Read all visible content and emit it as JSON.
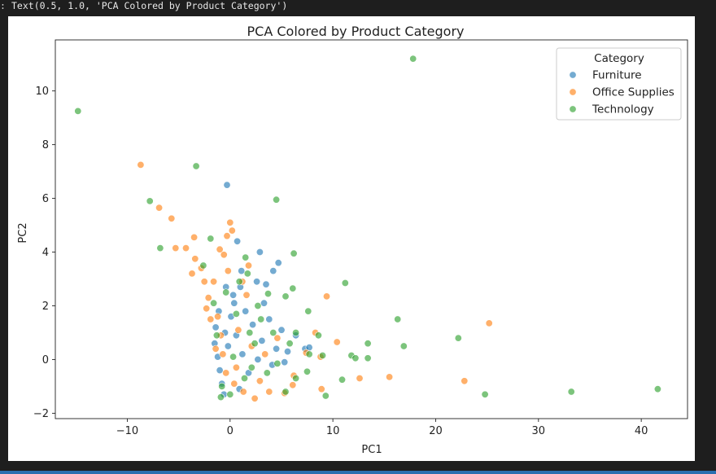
{
  "output": {
    "gutter": ":",
    "text": "Text(0.5, 1.0, 'PCA Colored by Product Category')"
  },
  "chart_data": {
    "type": "scatter",
    "title": "PCA Colored by Product Category",
    "xlabel": "PC1",
    "ylabel": "PC2",
    "xlim": [
      -17,
      44.5
    ],
    "ylim": [
      -2.2,
      11.9
    ],
    "xticks": [
      -10,
      0,
      10,
      20,
      30,
      40
    ],
    "yticks": [
      -2,
      0,
      2,
      4,
      6,
      8,
      10
    ],
    "grid": false,
    "legend": {
      "title": "Category",
      "placement": "top-right"
    },
    "series": [
      {
        "name": "Furniture",
        "color": "#1f77b4",
        "points": [
          [
            -0.3,
            6.5
          ],
          [
            0.7,
            4.4
          ],
          [
            2.9,
            4.0
          ],
          [
            4.7,
            3.6
          ],
          [
            4.2,
            3.3
          ],
          [
            3.5,
            2.8
          ],
          [
            2.6,
            2.9
          ],
          [
            1.1,
            3.3
          ],
          [
            -0.4,
            2.7
          ],
          [
            0.3,
            2.4
          ],
          [
            -1.1,
            1.8
          ],
          [
            -1.4,
            1.2
          ],
          [
            -1.5,
            0.6
          ],
          [
            -1.2,
            0.1
          ],
          [
            -1.0,
            -0.4
          ],
          [
            -0.8,
            -0.9
          ],
          [
            -0.6,
            -1.3
          ],
          [
            0.1,
            1.6
          ],
          [
            0.6,
            0.9
          ],
          [
            1.2,
            0.2
          ],
          [
            1.8,
            -0.5
          ],
          [
            2.2,
            1.3
          ],
          [
            3.1,
            0.7
          ],
          [
            3.8,
            1.5
          ],
          [
            4.5,
            0.4
          ],
          [
            5.0,
            1.1
          ],
          [
            5.6,
            0.3
          ],
          [
            6.4,
            0.9
          ],
          [
            7.3,
            0.4
          ],
          [
            7.7,
            0.45
          ],
          [
            0.4,
            2.1
          ],
          [
            -0.2,
            0.5
          ],
          [
            1.5,
            1.8
          ],
          [
            2.7,
            0.0
          ],
          [
            0.9,
            -1.1
          ],
          [
            -0.5,
            1.0
          ],
          [
            3.3,
            2.1
          ],
          [
            4.1,
            -0.2
          ],
          [
            1.0,
            2.7
          ],
          [
            5.3,
            -0.1
          ]
        ]
      },
      {
        "name": "Office Supplies",
        "color": "#ff7f0e",
        "points": [
          [
            -8.7,
            7.25
          ],
          [
            -6.9,
            5.65
          ],
          [
            -5.7,
            5.25
          ],
          [
            -5.3,
            4.15
          ],
          [
            -3.5,
            4.55
          ],
          [
            -4.3,
            4.15
          ],
          [
            -3.4,
            3.75
          ],
          [
            -3.7,
            3.2
          ],
          [
            -2.8,
            3.4
          ],
          [
            -2.5,
            2.9
          ],
          [
            -2.1,
            2.3
          ],
          [
            -2.3,
            1.9
          ],
          [
            -1.9,
            1.5
          ],
          [
            0.0,
            5.1
          ],
          [
            0.2,
            4.8
          ],
          [
            -0.3,
            4.6
          ],
          [
            -1.0,
            4.1
          ],
          [
            -0.6,
            3.9
          ],
          [
            1.8,
            3.5
          ],
          [
            -1.6,
            2.9
          ],
          [
            -1.2,
            1.6
          ],
          [
            -0.9,
            0.9
          ],
          [
            -0.7,
            0.2
          ],
          [
            -0.4,
            -0.5
          ],
          [
            0.4,
            -0.9
          ],
          [
            1.3,
            -1.2
          ],
          [
            2.4,
            -1.45
          ],
          [
            3.8,
            -1.2
          ],
          [
            5.3,
            -1.25
          ],
          [
            6.2,
            -0.6
          ],
          [
            6.1,
            -0.95
          ],
          [
            7.4,
            0.25
          ],
          [
            8.8,
            0.1
          ],
          [
            8.3,
            1.0
          ],
          [
            9.4,
            2.35
          ],
          [
            10.4,
            0.65
          ],
          [
            12.6,
            -0.7
          ],
          [
            8.9,
            -1.1
          ],
          [
            15.5,
            -0.65
          ],
          [
            22.8,
            -0.8
          ],
          [
            25.2,
            1.35
          ],
          [
            2.1,
            0.5
          ],
          [
            0.8,
            1.1
          ],
          [
            1.6,
            2.4
          ],
          [
            -1.4,
            0.4
          ],
          [
            3.4,
            0.2
          ],
          [
            4.6,
            0.8
          ],
          [
            0.6,
            -0.3
          ],
          [
            2.9,
            -0.8
          ],
          [
            -0.2,
            3.3
          ],
          [
            1.2,
            2.9
          ]
        ]
      },
      {
        "name": "Technology",
        "color": "#2ca02c",
        "points": [
          [
            -14.8,
            9.25
          ],
          [
            17.8,
            11.2
          ],
          [
            -3.3,
            7.2
          ],
          [
            -7.8,
            5.9
          ],
          [
            4.5,
            5.95
          ],
          [
            -6.8,
            4.15
          ],
          [
            -1.9,
            4.5
          ],
          [
            6.2,
            3.95
          ],
          [
            1.5,
            3.8
          ],
          [
            -2.6,
            3.5
          ],
          [
            11.2,
            2.85
          ],
          [
            6.1,
            2.65
          ],
          [
            5.4,
            2.35
          ],
          [
            3.7,
            2.45
          ],
          [
            16.3,
            1.5
          ],
          [
            7.6,
            1.8
          ],
          [
            22.2,
            0.8
          ],
          [
            13.4,
            0.6
          ],
          [
            16.9,
            0.5
          ],
          [
            11.8,
            0.15
          ],
          [
            12.2,
            0.05
          ],
          [
            13.4,
            0.05
          ],
          [
            9.0,
            0.15
          ],
          [
            7.7,
            0.2
          ],
          [
            8.6,
            0.9
          ],
          [
            6.4,
            1.0
          ],
          [
            7.5,
            -0.45
          ],
          [
            6.4,
            -0.7
          ],
          [
            10.9,
            -0.75
          ],
          [
            5.4,
            -1.2
          ],
          [
            9.3,
            -1.35
          ],
          [
            24.8,
            -1.3
          ],
          [
            33.2,
            -1.2
          ],
          [
            41.6,
            -1.1
          ],
          [
            -0.4,
            2.5
          ],
          [
            0.6,
            1.7
          ],
          [
            1.9,
            1.0
          ],
          [
            2.7,
            2.0
          ],
          [
            -1.3,
            0.9
          ],
          [
            0.3,
            0.1
          ],
          [
            2.1,
            -0.3
          ],
          [
            3.0,
            1.5
          ],
          [
            4.2,
            1.0
          ],
          [
            -0.8,
            -1.0
          ],
          [
            1.4,
            -0.7
          ],
          [
            3.6,
            -0.5
          ],
          [
            0.0,
            -1.3
          ],
          [
            -0.9,
            -1.4
          ],
          [
            4.6,
            -0.15
          ],
          [
            2.4,
            0.6
          ],
          [
            -1.6,
            2.1
          ],
          [
            0.9,
            2.9
          ],
          [
            1.7,
            3.2
          ],
          [
            5.8,
            0.6
          ]
        ]
      }
    ]
  }
}
